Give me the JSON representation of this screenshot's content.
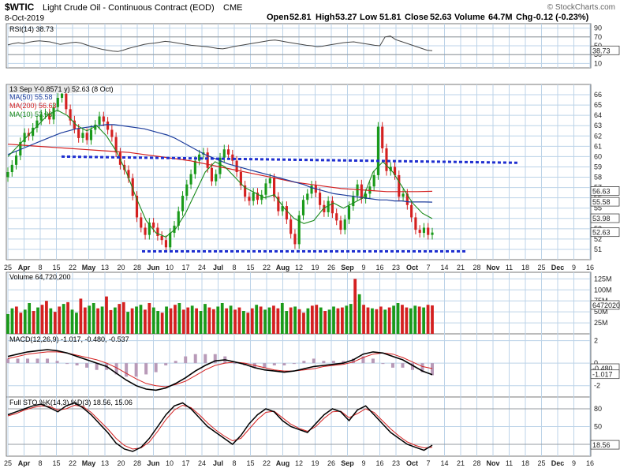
{
  "header": {
    "symbol": "$WTIC",
    "name": "Light Crude Oil - Continuous Contract (EOD)",
    "exchange": "CME",
    "date": "8-Oct-2019",
    "ohlc": {
      "open_label": "Open",
      "open": "52.81",
      "high_label": "High",
      "high": "53.27",
      "low_label": "Low",
      "low": "51.81",
      "close_label": "Close",
      "close": "52.63",
      "volume_label": "Volume",
      "volume": "64.7M",
      "chg_label": "Chg",
      "chg": "-0.12 (-0.23%)"
    },
    "credit": "© StockCharts.com"
  },
  "colors": {
    "up": "#1a9a1a",
    "down": "#d42020",
    "grid": "#bcd3e8",
    "ma50": "#1c3c9c",
    "ma200": "#d42020",
    "ma10": "#1a8a1a",
    "trendline": "#1f2fd0",
    "rsi": "#444444",
    "macd": "#000000",
    "signal": "#d42020",
    "hist": "#b89ab8"
  },
  "x_axis": {
    "labels": [
      "25",
      "Apr",
      "8",
      "15",
      "22",
      "May",
      "13",
      "20",
      "28",
      "Jun",
      "10",
      "17",
      "24",
      "Jul",
      "8",
      "15",
      "22",
      "Aug",
      "12",
      "19",
      "26",
      "Sep",
      "9",
      "16",
      "23",
      "Oct",
      "7",
      "14",
      "21",
      "28",
      "Nov",
      "11",
      "18",
      "25",
      "Dec",
      "9",
      "16"
    ],
    "bold": [
      "Apr",
      "May",
      "Jun",
      "Jul",
      "Aug",
      "Sep",
      "Oct",
      "Nov",
      "Dec"
    ]
  },
  "chart_data": [
    {
      "id": "rsi",
      "type": "line",
      "legend": "RSI(14) 38.73",
      "last": "38.73",
      "ylim": [
        0,
        100
      ],
      "ticks": [
        "90",
        "70",
        "50",
        "30",
        "10"
      ],
      "levels": [
        70,
        30
      ],
      "values": [
        52,
        55,
        57,
        55,
        58,
        60,
        61,
        60,
        59,
        56,
        53,
        55,
        57,
        58,
        56,
        52,
        48,
        45,
        42,
        40,
        38,
        37,
        40,
        44,
        47,
        50,
        53,
        55,
        56,
        58,
        60,
        59,
        57,
        55,
        53,
        51,
        50,
        49,
        48,
        46,
        44,
        43,
        45,
        48,
        50,
        52,
        54,
        56,
        58,
        60,
        62,
        63,
        61,
        59,
        57,
        55,
        53,
        51,
        50,
        48,
        49,
        51,
        53,
        55,
        57,
        58,
        59,
        57,
        55,
        53,
        51,
        50,
        70,
        72,
        64,
        60,
        56,
        52,
        48,
        44,
        40,
        38.73
      ]
    },
    {
      "id": "price",
      "type": "candlestick",
      "legend": {
        "main": "13 Sep Y-0.8571 y) 52.63 (8 Oct)",
        "ma50": "MA(50) 55.58",
        "ma200": "MA(200) 56.63",
        "ma10": "MA(10) 53.98"
      },
      "ylim": [
        50,
        67
      ],
      "ticks": [
        "66",
        "65",
        "64",
        "63",
        "62",
        "61",
        "60",
        "59",
        "58",
        "57",
        "56",
        "55",
        "54",
        "53",
        "52",
        "51"
      ],
      "last_labels": [
        "56.63",
        "55.58",
        "53.98",
        "52.63"
      ],
      "close": [
        58.5,
        59.2,
        60.1,
        61.4,
        62.3,
        62.0,
        62.8,
        63.5,
        64.1,
        64.2,
        63.6,
        64.8,
        65.7,
        66.1,
        64.6,
        63.5,
        62.7,
        61.8,
        62.3,
        61.6,
        62.6,
        63.1,
        63.9,
        63.4,
        62.6,
        61.9,
        60.4,
        59.2,
        58.7,
        57.9,
        56.2,
        54.1,
        53.1,
        52.4,
        53.6,
        53.1,
        52.3,
        51.9,
        51.2,
        52.6,
        53.3,
        54.7,
        56.2,
        57.3,
        58.3,
        59.6,
        60.2,
        60.4,
        58.9,
        57.6,
        58.3,
        59.9,
        60.7,
        60.2,
        59.6,
        58.5,
        57.2,
        56.1,
        55.7,
        56.5,
        55.8,
        56.3,
        57.4,
        57.9,
        56.1,
        54.7,
        55.2,
        53.9,
        52.5,
        51.5,
        54.3,
        55.8,
        56.4,
        57.2,
        56.5,
        55.3,
        54.6,
        55.7,
        54.5,
        53.8,
        52.9,
        53.9,
        55.2,
        56.2,
        57.3,
        55.9,
        56.4,
        57.1,
        58.2,
        62.9,
        60.8,
        58.6,
        59.0,
        58.2,
        56.1,
        56.4,
        55.3,
        54.1,
        52.9,
        52.6,
        53.1,
        52.4,
        52.63
      ],
      "ma50": [
        60.2,
        60.5,
        60.8,
        61.1,
        61.4,
        61.7,
        62.0,
        62.3,
        62.5,
        62.7,
        62.8,
        62.9,
        63.0,
        63.1,
        63.1,
        63.0,
        62.9,
        62.8,
        62.7,
        62.5,
        62.3,
        62.1,
        61.8,
        61.4,
        61.0,
        60.6,
        60.2,
        59.9,
        59.6,
        59.3,
        59.1,
        58.9,
        58.7,
        58.5,
        58.3,
        58.1,
        57.9,
        57.7,
        57.5,
        57.3,
        57.0,
        56.8,
        56.6,
        56.4,
        56.3,
        56.2,
        56.1,
        56.0,
        55.9,
        55.8,
        55.8,
        55.7,
        55.7,
        55.6,
        55.6,
        55.6,
        55.58
      ],
      "ma200": [
        61.2,
        61.1,
        61.0,
        60.9,
        60.8,
        60.7,
        60.6,
        60.5,
        60.4,
        60.2,
        60.0,
        59.8,
        59.6,
        59.3,
        59.0,
        58.7,
        58.4,
        58.1,
        57.8,
        57.5,
        57.3,
        57.1,
        56.9,
        56.8,
        56.7,
        56.6,
        56.6,
        56.6,
        56.63
      ],
      "ma10": [
        60.0,
        61.0,
        62.0,
        63.0,
        64.0,
        64.5,
        64.0,
        63.0,
        62.5,
        63.0,
        62.0,
        60.5,
        58.5,
        56.0,
        53.8,
        52.6,
        52.2,
        53.0,
        54.5,
        56.5,
        58.5,
        59.5,
        59.0,
        58.0,
        57.0,
        56.5,
        56.0,
        56.3,
        55.0,
        54.0,
        53.5,
        53.8,
        55.0,
        55.5,
        55.0,
        55.5,
        56.0,
        58.5,
        59.5,
        58.5,
        57.0,
        55.5,
        54.5,
        53.98
      ],
      "trendlines": [
        {
          "name": "resistance",
          "from": 60,
          "to": 59.4
        },
        {
          "name": "support",
          "from": 50.8,
          "to": 50.8
        }
      ]
    },
    {
      "id": "volume",
      "type": "bar",
      "legend": "Volume 64,720,200",
      "last": "64720200",
      "ylim": [
        0,
        140
      ],
      "ticks": [
        "125M",
        "100M",
        "75M",
        "50M",
        "25M"
      ],
      "values": [
        45,
        58,
        62,
        48,
        55,
        70,
        52,
        60,
        66,
        75,
        58,
        50,
        62,
        68,
        72,
        55,
        48,
        80,
        60,
        64,
        70,
        58,
        62,
        85,
        54,
        60,
        68,
        72,
        50,
        58,
        62,
        66,
        55,
        70,
        60,
        52,
        48,
        62,
        58,
        66,
        70,
        55,
        60,
        64,
        58,
        52,
        68,
        60,
        56,
        62,
        70,
        58,
        64,
        55,
        60,
        52,
        48,
        58,
        66,
        62,
        55,
        60,
        64,
        58,
        70,
        52,
        60,
        62,
        56,
        48,
        58,
        64,
        66,
        60,
        52,
        55,
        62,
        58,
        60,
        64,
        68,
        125,
        90,
        66,
        60,
        58,
        56,
        62,
        55,
        60,
        64,
        70,
        66,
        60,
        58,
        64,
        62,
        60,
        66,
        64.7
      ]
    },
    {
      "id": "macd",
      "type": "line",
      "legend": "MACD(12,26,9) -1.017, -0.480, -0.537",
      "last_labels": [
        "-0.480",
        "-1.017"
      ],
      "ylim": [
        -3,
        2.6
      ],
      "ticks": [
        "2",
        "0",
        "-2"
      ],
      "macd": [
        0.6,
        0.8,
        1.0,
        1.1,
        1.2,
        1.1,
        0.9,
        0.6,
        0.3,
        0.0,
        -0.3,
        -0.9,
        -1.5,
        -2.0,
        -2.3,
        -2.4,
        -2.2,
        -1.8,
        -1.3,
        -0.7,
        -0.2,
        0.2,
        0.3,
        0.1,
        -0.1,
        -0.4,
        -0.6,
        -0.7,
        -0.8,
        -0.7,
        -0.5,
        -0.3,
        -0.2,
        -0.1,
        0.0,
        0.3,
        0.8,
        1.0,
        0.9,
        0.6,
        0.3,
        -0.2,
        -0.7,
        -1.017
      ],
      "signal": [
        0.4,
        0.6,
        0.8,
        0.9,
        1.0,
        1.0,
        0.9,
        0.7,
        0.5,
        0.3,
        0.0,
        -0.4,
        -0.9,
        -1.4,
        -1.8,
        -2.0,
        -2.1,
        -1.9,
        -1.6,
        -1.1,
        -0.6,
        -0.2,
        0.0,
        0.1,
        0.0,
        -0.2,
        -0.4,
        -0.6,
        -0.7,
        -0.7,
        -0.6,
        -0.5,
        -0.3,
        -0.2,
        -0.1,
        0.1,
        0.5,
        0.8,
        0.9,
        0.8,
        0.5,
        0.1,
        -0.3,
        -0.48
      ]
    },
    {
      "id": "sto",
      "type": "line",
      "legend": "Full STO %K(14,3) %D(3) 18.56, 15.06",
      "last": "18.56",
      "ylim": [
        0,
        100
      ],
      "ticks": [
        "80",
        "50",
        "20"
      ],
      "levels": [
        80,
        20
      ],
      "k": [
        70,
        75,
        80,
        85,
        88,
        82,
        75,
        85,
        90,
        82,
        70,
        55,
        40,
        22,
        12,
        8,
        15,
        30,
        50,
        70,
        85,
        90,
        80,
        65,
        50,
        40,
        30,
        20,
        35,
        55,
        70,
        80,
        75,
        60,
        50,
        45,
        40,
        55,
        70,
        80,
        75,
        60,
        78,
        85,
        70,
        55,
        40,
        30,
        20,
        15,
        10,
        18.56
      ],
      "d": [
        68,
        72,
        78,
        82,
        85,
        84,
        78,
        80,
        86,
        84,
        74,
        60,
        46,
        30,
        18,
        12,
        14,
        24,
        42,
        62,
        78,
        86,
        82,
        70,
        56,
        44,
        34,
        26,
        30,
        46,
        62,
        74,
        76,
        65,
        54,
        47,
        42,
        50,
        64,
        75,
        76,
        65,
        72,
        80,
        74,
        60,
        46,
        34,
        24,
        18,
        14,
        15.06
      ]
    }
  ]
}
